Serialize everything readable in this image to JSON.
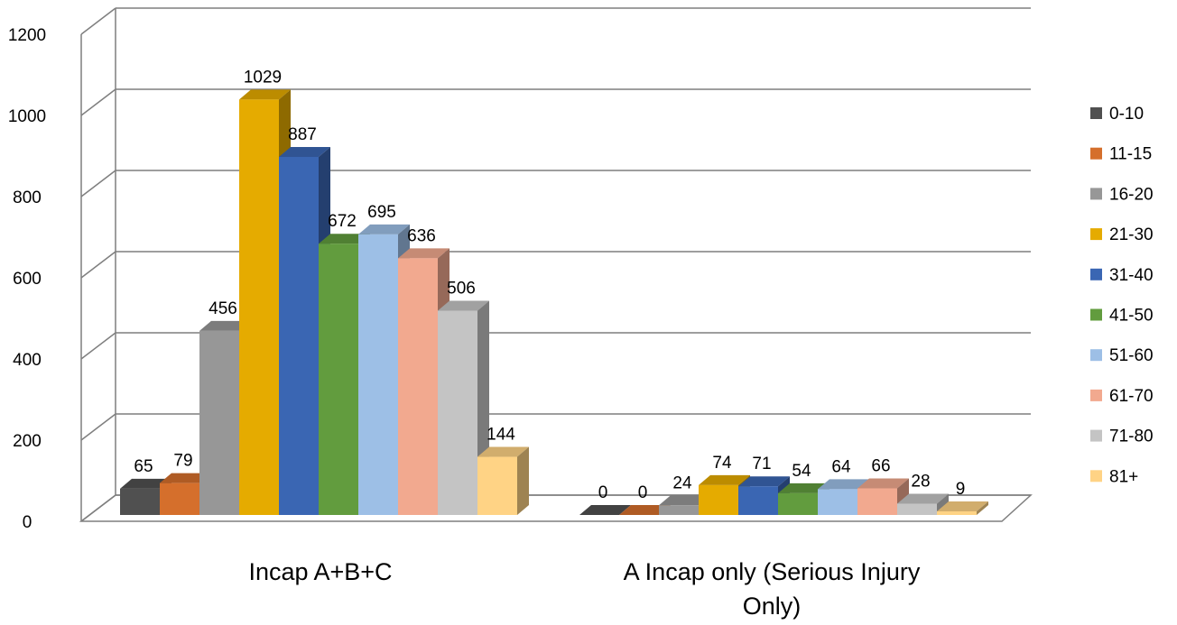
{
  "chart_data": {
    "type": "bar",
    "title": "",
    "xlabel": "",
    "ylabel": "",
    "ylim": [
      0,
      1200
    ],
    "yticks": [
      "0",
      "200",
      "400",
      "600",
      "800",
      "1000",
      "1200"
    ],
    "grid": true,
    "legend_position": "right",
    "categories": [
      "Incap A+B+C",
      "A Incap only (Serious Injury Only)"
    ],
    "category_lines": [
      [
        "Incap A+B+C"
      ],
      [
        "A Incap only (Serious Injury",
        "Only)"
      ]
    ],
    "series": [
      {
        "name": "0-10",
        "values": [
          65,
          0
        ],
        "color": "#505050"
      },
      {
        "name": "11-15",
        "values": [
          79,
          0
        ],
        "color": "#d56f2c"
      },
      {
        "name": "16-20",
        "values": [
          456,
          24
        ],
        "color": "#979797"
      },
      {
        "name": "21-30",
        "values": [
          1029,
          74
        ],
        "color": "#e5ab00"
      },
      {
        "name": "31-40",
        "values": [
          887,
          71
        ],
        "color": "#3a66b3"
      },
      {
        "name": "41-50",
        "values": [
          672,
          54
        ],
        "color": "#629c3e"
      },
      {
        "name": "51-60",
        "values": [
          695,
          64
        ],
        "color": "#9dbfe6"
      },
      {
        "name": "61-70",
        "values": [
          636,
          66
        ],
        "color": "#f2a98f"
      },
      {
        "name": "71-80",
        "values": [
          506,
          28
        ],
        "color": "#c4c4c4"
      },
      {
        "name": "81+",
        "values": [
          144,
          9
        ],
        "color": "#ffd385"
      }
    ]
  }
}
